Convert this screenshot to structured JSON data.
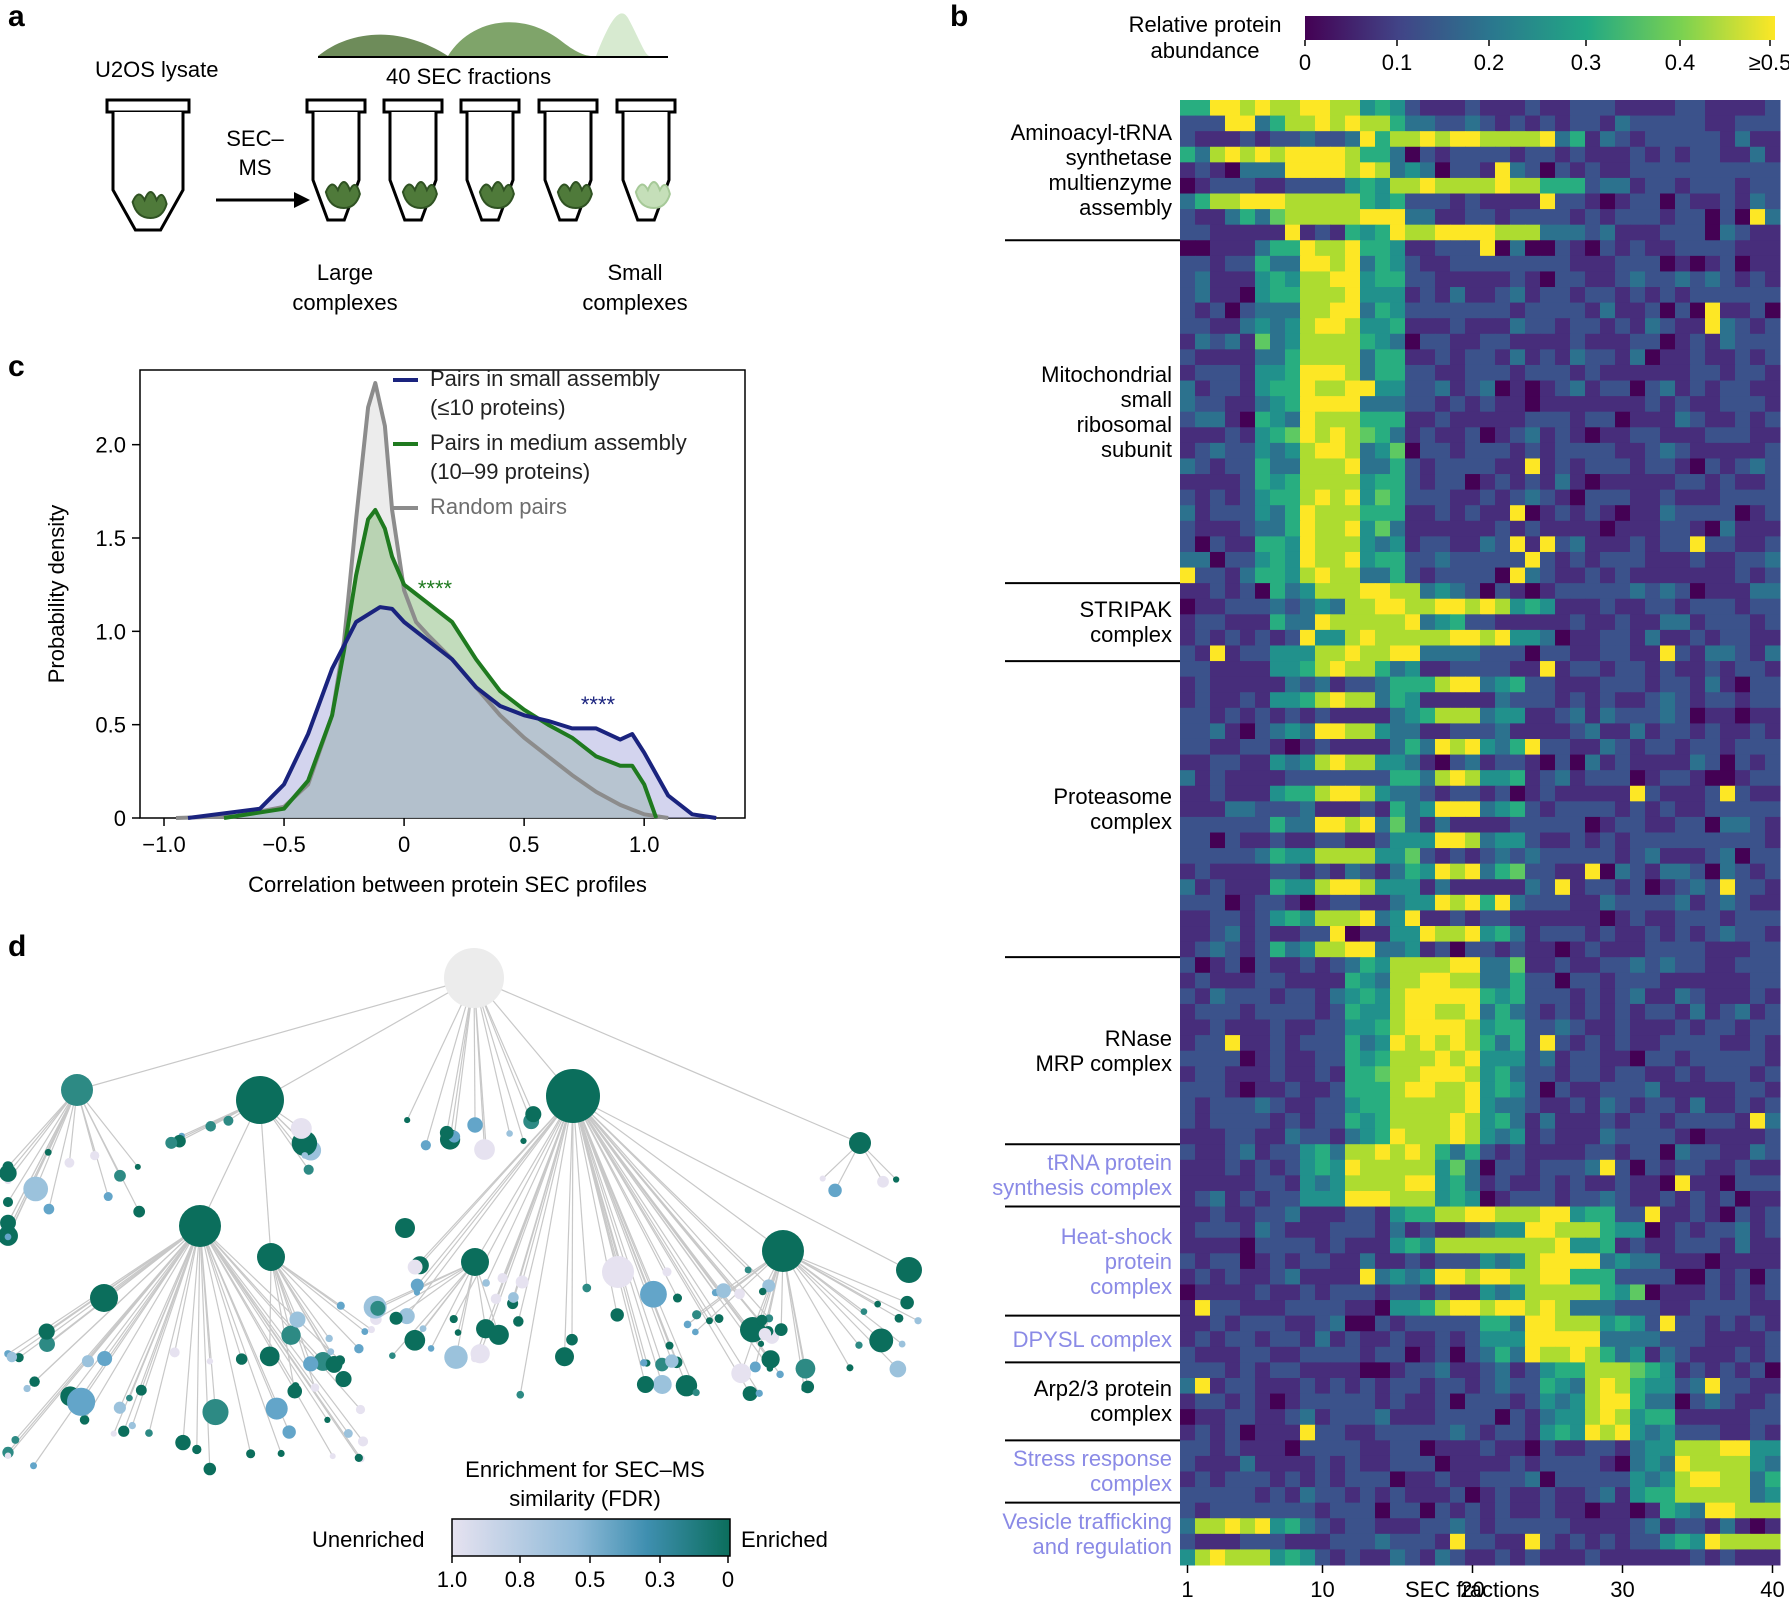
{
  "panel_labels": {
    "a": "a",
    "b": "b",
    "c": "c",
    "d": "d"
  },
  "panel_a": {
    "lysate": "U2OS lysate",
    "method": "SEC–\nMS",
    "fractions": "40 SEC fractions",
    "large": "Large\ncomplexes",
    "small": "Small\ncomplexes"
  },
  "panel_b": {
    "colorbar_title": "Relative protein\nabundance",
    "colorbar_ticks": [
      "0",
      "0.1",
      "0.2",
      "0.3",
      "0.4",
      "≥0.5"
    ],
    "x_ticks": [
      "1",
      "10",
      "20",
      "30",
      "40"
    ],
    "x_label": "SEC fractions",
    "colors": {
      "low": "#440154",
      "mid": "#21918c",
      "high": "#fde725",
      "label_default": "#000000",
      "label_highlight": "#8a8ae6"
    },
    "complexes": [
      {
        "name": "Aminoacyl-tRNA\nsynthetase\nmultienzyme\nassembly",
        "rows": 9,
        "highlight": false,
        "peaks": [
          [
            3,
            12,
            8
          ],
          [
            8,
            14,
            6
          ],
          [
            15,
            24,
            4
          ]
        ]
      },
      {
        "name": "Mitochondrial\nsmall\nribosomal\nsubunit",
        "rows": 22,
        "highlight": false,
        "peaks": [
          [
            9,
            12,
            3
          ]
        ]
      },
      {
        "name": "STRIPAK\ncomplex",
        "rows": 5,
        "highlight": false,
        "peaks": [
          [
            10,
            16,
            6
          ],
          [
            12,
            22,
            8
          ]
        ]
      },
      {
        "name": "Proteasome\ncomplex",
        "rows": 19,
        "highlight": false,
        "peaks": [
          [
            10,
            13,
            3
          ],
          [
            18,
            20,
            2
          ]
        ]
      },
      {
        "name": "RNase\nMRP complex",
        "rows": 12,
        "highlight": false,
        "peaks": [
          [
            15,
            20,
            4
          ]
        ]
      },
      {
        "name": "tRNA protein\nsynthesis complex",
        "rows": 4,
        "highlight": true,
        "peaks": [
          [
            12,
            17,
            4
          ]
        ]
      },
      {
        "name": "Heat-shock\nprotein\ncomplex",
        "rows": 7,
        "highlight": true,
        "peaks": [
          [
            18,
            26,
            6
          ],
          [
            24,
            28,
            3
          ]
        ]
      },
      {
        "name": "DPYSL complex",
        "rows": 3,
        "highlight": true,
        "peaks": [
          [
            24,
            28,
            3
          ]
        ]
      },
      {
        "name": "Arp2/3 protein\ncomplex",
        "rows": 5,
        "highlight": false,
        "peaks": [
          [
            28,
            30,
            2
          ]
        ]
      },
      {
        "name": "Stress response\ncomplex",
        "rows": 4,
        "highlight": true,
        "peaks": [
          [
            34,
            38,
            3
          ]
        ]
      },
      {
        "name": "Vesicle trafficking\nand regulation",
        "rows": 4,
        "highlight": true,
        "peaks": [
          [
            36,
            40,
            4
          ],
          [
            2,
            6,
            3
          ]
        ]
      }
    ]
  },
  "panel_c": {
    "stars_green": "****",
    "stars_blue": "****",
    "chart_data": {
      "type": "area",
      "title": "",
      "xlabel": "Correlation between protein SEC profiles",
      "ylabel": "Probability density",
      "xlim": [
        -1.1,
        1.42
      ],
      "ylim": [
        0,
        2.4
      ],
      "x_ticks": [
        "−1.0",
        "−0.5",
        "0",
        "0.5",
        "1.0"
      ],
      "x_tick_values": [
        -1.0,
        -0.5,
        0,
        0.5,
        1.0
      ],
      "y_ticks": [
        "0",
        "0.5",
        "1.0",
        "1.5",
        "2.0"
      ],
      "y_tick_values": [
        0,
        0.5,
        1.0,
        1.5,
        2.0
      ],
      "series": [
        {
          "name": "Random pairs",
          "color": "#8c8c8c",
          "fill": "#dcdcdc",
          "x": [
            -0.95,
            -0.7,
            -0.5,
            -0.4,
            -0.3,
            -0.25,
            -0.2,
            -0.15,
            -0.12,
            -0.08,
            -0.05,
            0,
            0.05,
            0.1,
            0.2,
            0.3,
            0.4,
            0.5,
            0.6,
            0.7,
            0.8,
            0.9,
            1.0,
            1.1
          ],
          "y": [
            0,
            0.01,
            0.06,
            0.18,
            0.55,
            0.95,
            1.6,
            2.2,
            2.33,
            2.1,
            1.65,
            1.22,
            1.05,
            0.98,
            0.85,
            0.7,
            0.55,
            0.43,
            0.33,
            0.23,
            0.14,
            0.07,
            0.02,
            0
          ]
        },
        {
          "name": "Pairs in medium assembly\n(10–99 proteins)",
          "color": "#1f7a1f",
          "fill": "#8fbf85",
          "x": [
            -0.75,
            -0.5,
            -0.4,
            -0.3,
            -0.25,
            -0.2,
            -0.15,
            -0.12,
            -0.08,
            -0.05,
            0,
            0.05,
            0.1,
            0.2,
            0.3,
            0.4,
            0.5,
            0.6,
            0.7,
            0.8,
            0.9,
            0.95,
            1.0,
            1.05
          ],
          "y": [
            0,
            0.05,
            0.2,
            0.55,
            0.9,
            1.3,
            1.6,
            1.65,
            1.55,
            1.4,
            1.25,
            1.2,
            1.15,
            1.05,
            0.85,
            0.68,
            0.58,
            0.5,
            0.43,
            0.33,
            0.28,
            0.28,
            0.18,
            0
          ]
        },
        {
          "name": "Pairs in small assembly\n(≤10 proteins)",
          "color": "#1a237e",
          "fill": "#aeb0e0",
          "x": [
            -0.9,
            -0.6,
            -0.5,
            -0.4,
            -0.3,
            -0.2,
            -0.1,
            -0.05,
            0,
            0.1,
            0.2,
            0.3,
            0.4,
            0.5,
            0.6,
            0.7,
            0.8,
            0.9,
            0.95,
            1.0,
            1.1,
            1.2,
            1.3
          ],
          "y": [
            0,
            0.05,
            0.18,
            0.45,
            0.8,
            1.05,
            1.13,
            1.12,
            1.05,
            0.95,
            0.85,
            0.7,
            0.6,
            0.55,
            0.52,
            0.48,
            0.48,
            0.42,
            0.45,
            0.35,
            0.12,
            0.02,
            0
          ]
        }
      ],
      "legend": "top-right",
      "annotations": [
        "****",
        "****"
      ]
    }
  },
  "panel_d": {
    "colorbar_title": "Enrichment for SEC–MS\nsimilarity (FDR)",
    "left_label": "Unenriched",
    "right_label": "Enriched",
    "ticks": [
      "1.0",
      "0.8",
      "0.5",
      "0.3",
      "0"
    ],
    "colors": {
      "unenriched": "#e6e2f0",
      "mid": "#63a5c9",
      "enriched": "#0b6e5c",
      "root": "#ececec",
      "edge": "#c8c8c8"
    }
  }
}
